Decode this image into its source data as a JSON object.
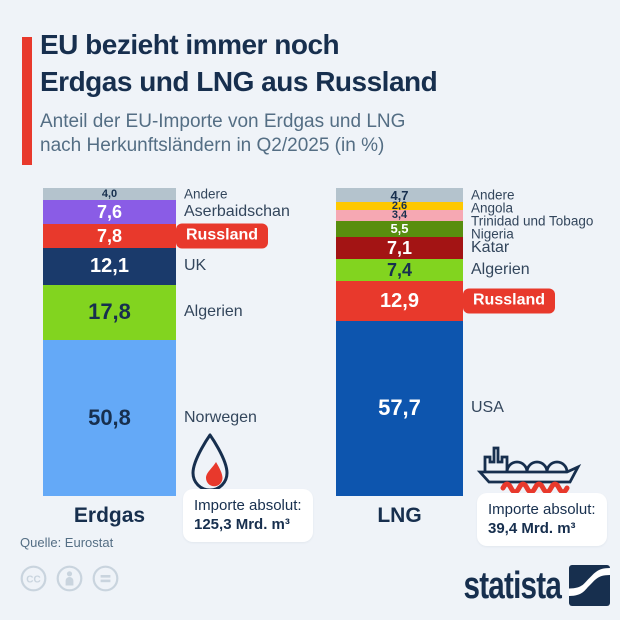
{
  "header": {
    "title_line1": "EU bezieht immer noch",
    "title_line2": "Erdgas und LNG aus Russland",
    "subtitle_line1": "Anteil der EU-Importe von Erdgas und LNG",
    "subtitle_line2": "nach Herkunftsländern in Q2/2025 (in %)",
    "accent_color": "#e8392c"
  },
  "chart_data": {
    "type": "bar",
    "subtype": "stacked-percentage-columns",
    "title": "Anteil der EU-Importe von Erdgas und LNG nach Herkunftsländern in Q2/2025 (in %)",
    "unit": "%",
    "highlight_color": "#e8392c",
    "charts": [
      {
        "name": "Erdgas",
        "icon": "gas-flame-icon",
        "total_label": {
          "line1": "Importe absolut:",
          "line2": "125,3 Mrd. m³"
        },
        "segments": [
          {
            "label": "Andere",
            "value": 4.0,
            "display": "4,0",
            "color": "#b4c3cd",
            "text": "dark",
            "highlight": false
          },
          {
            "label": "Aserbaidschan",
            "value": 7.6,
            "display": "7,6",
            "color": "#8a5ce6",
            "text": "light",
            "highlight": false
          },
          {
            "label": "Russland",
            "value": 7.8,
            "display": "7,8",
            "color": "#e8392c",
            "text": "light",
            "highlight": true
          },
          {
            "label": "UK",
            "value": 12.1,
            "display": "12,1",
            "color": "#1a3a6b",
            "text": "light",
            "highlight": false
          },
          {
            "label": "Algerien",
            "value": 17.8,
            "display": "17,8",
            "color": "#82d41f",
            "text": "dark",
            "highlight": false
          },
          {
            "label": "Norwegen",
            "value": 50.8,
            "display": "50,8",
            "color": "#64a9f7",
            "text": "dark",
            "highlight": false
          }
        ]
      },
      {
        "name": "LNG",
        "icon": "lng-tanker-icon",
        "total_label": {
          "line1": "Importe absolut:",
          "line2": "39,4 Mrd. m³"
        },
        "segments": [
          {
            "label": "Andere",
            "value": 4.7,
            "display": "4,7",
            "color": "#b4c3cd",
            "text": "dark",
            "highlight": false
          },
          {
            "label": "Angola",
            "value": 2.6,
            "display": "2,6",
            "color": "#fec800",
            "text": "dark",
            "highlight": false
          },
          {
            "label": "Trinidad und Tobago",
            "value": 3.4,
            "display": "3,4",
            "color": "#f6a8b3",
            "text": "dark",
            "highlight": false
          },
          {
            "label": "Nigeria",
            "value": 5.5,
            "display": "5,5",
            "color": "#588e0e",
            "text": "light",
            "highlight": false
          },
          {
            "label": "Katar",
            "value": 7.1,
            "display": "7,1",
            "color": "#a31414",
            "text": "light",
            "highlight": false
          },
          {
            "label": "Algerien",
            "value": 7.4,
            "display": "7,4",
            "color": "#82d41f",
            "text": "dark",
            "highlight": false
          },
          {
            "label": "Russland",
            "value": 12.9,
            "display": "12,9",
            "color": "#e8392c",
            "text": "light",
            "highlight": true
          },
          {
            "label": "USA",
            "value": 57.7,
            "display": "57,7",
            "color": "#0d55ae",
            "text": "light",
            "highlight": false
          }
        ]
      }
    ]
  },
  "footer": {
    "source": "Quelle: Eurostat",
    "brand": "statista",
    "brand_color": "#172f4e"
  }
}
